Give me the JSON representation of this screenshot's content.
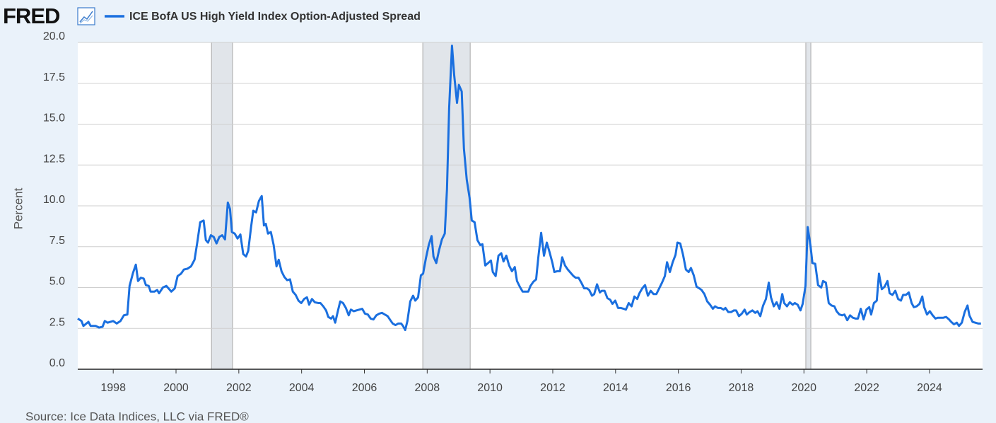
{
  "logo": "FRED",
  "source": "Source: Ice Data Indices, LLC via FRED®",
  "chart_data": {
    "type": "line",
    "y_label": "Percent",
    "grid": true,
    "xlim": [
      1996.87,
      2025.69
    ],
    "xticks": [
      1998,
      2000,
      2002,
      2004,
      2006,
      2008,
      2010,
      2012,
      2014,
      2016,
      2018,
      2020,
      2022,
      2024
    ],
    "ylim": [
      0,
      20
    ],
    "yticks": [
      {
        "value": 0,
        "label": "0.0"
      },
      2.5,
      {
        "value": 5,
        "label": "5.0"
      },
      7.5,
      {
        "value": 10,
        "label": "10.0"
      },
      12.5,
      {
        "value": 15,
        "label": "15.0"
      },
      17.5,
      {
        "value": 20,
        "label": "20.0"
      }
    ],
    "recessions": [
      [
        2001.13,
        2001.8
      ],
      [
        2007.86,
        2009.37
      ],
      [
        2020.06,
        2020.22
      ]
    ],
    "recession_color": "#e1e5ea",
    "x": [
      1996.87,
      1996.99,
      1997.05,
      1997.21,
      1997.28,
      1997.44,
      1997.55,
      1997.66,
      1997.73,
      1997.82,
      1998.0,
      1998.11,
      1998.23,
      1998.34,
      1998.45,
      1998.52,
      1998.63,
      1998.72,
      1998.79,
      1998.88,
      1998.97,
      1999.04,
      1999.13,
      1999.19,
      1999.31,
      1999.4,
      1999.46,
      1999.58,
      1999.69,
      1999.76,
      1999.85,
      1999.96,
      2000.05,
      2000.16,
      2000.25,
      2000.36,
      2000.48,
      2000.59,
      2000.68,
      2000.77,
      2000.88,
      2000.95,
      2001.02,
      2001.11,
      2001.2,
      2001.29,
      2001.38,
      2001.47,
      2001.56,
      2001.65,
      2001.72,
      2001.78,
      2001.87,
      2001.96,
      2002.05,
      2002.14,
      2002.23,
      2002.3,
      2002.39,
      2002.46,
      2002.55,
      2002.64,
      2002.73,
      2002.8,
      2002.86,
      2002.93,
      2003.02,
      2003.11,
      2003.2,
      2003.27,
      2003.36,
      2003.45,
      2003.54,
      2003.63,
      2003.72,
      2003.81,
      2003.9,
      2003.99,
      2004.08,
      2004.17,
      2004.24,
      2004.33,
      2004.42,
      2004.53,
      2004.6,
      2004.69,
      2004.78,
      2004.85,
      2004.94,
      2005.0,
      2005.07,
      2005.16,
      2005.23,
      2005.32,
      2005.41,
      2005.5,
      2005.57,
      2005.66,
      2005.75,
      2005.84,
      2005.93,
      2006.02,
      2006.11,
      2006.2,
      2006.29,
      2006.38,
      2006.47,
      2006.56,
      2006.65,
      2006.74,
      2006.81,
      2006.9,
      2006.99,
      2007.08,
      2007.17,
      2007.23,
      2007.3,
      2007.37,
      2007.46,
      2007.55,
      2007.62,
      2007.71,
      2007.8,
      2007.87,
      2007.96,
      2008.05,
      2008.14,
      2008.2,
      2008.29,
      2008.38,
      2008.47,
      2008.56,
      2008.63,
      2008.7,
      2008.79,
      2008.86,
      2008.95,
      2009.01,
      2009.1,
      2009.17,
      2009.26,
      2009.35,
      2009.42,
      2009.51,
      2009.6,
      2009.69,
      2009.76,
      2009.85,
      2009.94,
      2010.03,
      2010.09,
      2010.18,
      2010.27,
      2010.36,
      2010.43,
      2010.52,
      2010.61,
      2010.7,
      2010.79,
      2010.86,
      2010.95,
      2011.04,
      2011.13,
      2011.22,
      2011.29,
      2011.38,
      2011.47,
      2011.54,
      2011.63,
      2011.72,
      2011.81,
      2011.9,
      2011.99,
      2012.05,
      2012.14,
      2012.23,
      2012.3,
      2012.39,
      2012.48,
      2012.57,
      2012.66,
      2012.73,
      2012.82,
      2012.91,
      2013.0,
      2013.09,
      2013.16,
      2013.25,
      2013.32,
      2013.41,
      2013.5,
      2013.56,
      2013.65,
      2013.74,
      2013.83,
      2013.9,
      2013.99,
      2014.08,
      2014.17,
      2014.26,
      2014.33,
      2014.42,
      2014.51,
      2014.6,
      2014.69,
      2014.76,
      2014.85,
      2014.94,
      2015.03,
      2015.12,
      2015.21,
      2015.3,
      2015.39,
      2015.48,
      2015.57,
      2015.64,
      2015.73,
      2015.82,
      2015.91,
      2015.97,
      2016.06,
      2016.15,
      2016.24,
      2016.33,
      2016.4,
      2016.49,
      2016.58,
      2016.67,
      2016.74,
      2016.83,
      2016.92,
      2017.01,
      2017.1,
      2017.17,
      2017.26,
      2017.35,
      2017.44,
      2017.5,
      2017.59,
      2017.68,
      2017.77,
      2017.84,
      2017.93,
      2018.02,
      2018.11,
      2018.18,
      2018.27,
      2018.36,
      2018.45,
      2018.52,
      2018.61,
      2018.7,
      2018.79,
      2018.88,
      2018.95,
      2019.04,
      2019.13,
      2019.22,
      2019.31,
      2019.37,
      2019.46,
      2019.55,
      2019.64,
      2019.71,
      2019.8,
      2019.89,
      2019.96,
      2020.05,
      2020.12,
      2020.21,
      2020.27,
      2020.36,
      2020.45,
      2020.55,
      2020.61,
      2020.7,
      2020.79,
      2020.88,
      2020.97,
      2021.04,
      2021.13,
      2021.22,
      2021.29,
      2021.38,
      2021.47,
      2021.56,
      2021.65,
      2021.72,
      2021.81,
      2021.9,
      2021.99,
      2022.08,
      2022.14,
      2022.23,
      2022.32,
      2022.39,
      2022.48,
      2022.57,
      2022.66,
      2022.73,
      2022.82,
      2022.91,
      2023.0,
      2023.09,
      2023.16,
      2023.25,
      2023.34,
      2023.43,
      2023.5,
      2023.59,
      2023.68,
      2023.77,
      2023.83,
      2023.92,
      2024.01,
      2024.1,
      2024.19,
      2024.26,
      2024.35,
      2024.44,
      2024.53,
      2024.62,
      2024.69,
      2024.78,
      2024.87,
      2024.94,
      2025.03,
      2025.12,
      2025.21,
      2025.27,
      2025.37,
      2025.46,
      2025.55,
      2025.64
    ],
    "series": [
      {
        "name": "ICE BofA US High Yield Index Option-Adjusted Spread",
        "color": "#1a6fdf",
        "values": [
          3.1,
          2.95,
          2.65,
          2.9,
          2.65,
          2.65,
          2.55,
          2.6,
          2.95,
          2.85,
          2.95,
          2.8,
          2.95,
          3.3,
          3.35,
          5.1,
          5.9,
          6.4,
          5.4,
          5.6,
          5.55,
          5.15,
          5.1,
          4.75,
          4.75,
          4.85,
          4.65,
          5.0,
          5.1,
          4.95,
          4.75,
          4.95,
          5.7,
          5.85,
          6.1,
          6.15,
          6.3,
          6.7,
          7.8,
          9.0,
          9.1,
          7.9,
          7.75,
          8.2,
          8.1,
          7.7,
          8.1,
          8.2,
          7.95,
          10.2,
          9.8,
          8.4,
          8.3,
          8.0,
          8.25,
          7.05,
          6.9,
          7.25,
          8.7,
          9.7,
          9.6,
          10.3,
          10.6,
          8.8,
          8.9,
          8.3,
          8.4,
          7.6,
          6.3,
          6.7,
          6.0,
          5.65,
          5.45,
          5.5,
          4.75,
          4.55,
          4.2,
          4.05,
          4.3,
          4.4,
          3.95,
          4.3,
          4.1,
          4.05,
          4.05,
          3.85,
          3.6,
          3.2,
          3.1,
          3.25,
          2.85,
          3.6,
          4.15,
          4.05,
          3.75,
          3.3,
          3.65,
          3.55,
          3.6,
          3.65,
          3.7,
          3.4,
          3.35,
          3.1,
          3.05,
          3.3,
          3.4,
          3.45,
          3.35,
          3.25,
          3.05,
          2.8,
          2.7,
          2.8,
          2.8,
          2.65,
          2.4,
          2.95,
          4.15,
          4.5,
          4.2,
          4.4,
          5.75,
          5.85,
          6.8,
          7.6,
          8.15,
          6.9,
          6.5,
          7.3,
          7.95,
          8.3,
          11.0,
          16.0,
          19.8,
          18.0,
          16.3,
          17.4,
          17.0,
          13.5,
          11.6,
          10.5,
          9.1,
          9.0,
          7.9,
          7.6,
          7.65,
          6.35,
          6.5,
          6.65,
          5.95,
          5.7,
          6.95,
          7.1,
          6.6,
          6.95,
          6.35,
          6.0,
          6.25,
          5.4,
          5.05,
          4.75,
          4.75,
          4.75,
          5.1,
          5.35,
          5.5,
          6.85,
          8.35,
          6.95,
          7.75,
          7.15,
          6.5,
          5.95,
          6.0,
          6.0,
          6.85,
          6.35,
          6.1,
          5.9,
          5.7,
          5.6,
          5.6,
          5.3,
          4.95,
          4.95,
          4.85,
          4.5,
          4.6,
          5.2,
          4.7,
          4.8,
          4.8,
          4.35,
          4.25,
          4.0,
          4.2,
          3.75,
          3.75,
          3.7,
          3.65,
          4.05,
          3.85,
          4.45,
          4.3,
          4.65,
          4.95,
          5.15,
          4.5,
          4.8,
          4.6,
          4.6,
          4.95,
          5.3,
          5.7,
          6.55,
          5.95,
          6.55,
          7.0,
          7.75,
          7.7,
          7.0,
          6.1,
          5.95,
          6.2,
          5.75,
          5.05,
          4.95,
          4.85,
          4.6,
          4.15,
          3.95,
          3.7,
          3.85,
          3.75,
          3.75,
          3.65,
          3.75,
          3.5,
          3.5,
          3.6,
          3.6,
          3.25,
          3.4,
          3.65,
          3.35,
          3.5,
          3.6,
          3.45,
          3.55,
          3.25,
          3.9,
          4.3,
          5.3,
          4.4,
          3.85,
          4.1,
          3.7,
          4.6,
          4.05,
          3.85,
          4.1,
          3.95,
          4.05,
          3.95,
          3.6,
          4.0,
          5.1,
          8.7,
          7.55,
          6.5,
          6.45,
          5.15,
          5.0,
          5.4,
          5.3,
          4.05,
          3.9,
          3.85,
          3.55,
          3.35,
          3.3,
          3.35,
          3.0,
          3.3,
          3.15,
          3.1,
          3.1,
          3.7,
          3.05,
          3.65,
          3.8,
          3.35,
          4.05,
          4.2,
          5.85,
          4.9,
          5.05,
          5.4,
          4.65,
          4.55,
          4.8,
          4.3,
          4.2,
          4.55,
          4.55,
          4.7,
          4.05,
          3.8,
          3.85,
          4.0,
          4.45,
          3.8,
          3.35,
          3.55,
          3.3,
          3.1,
          3.15,
          3.15,
          3.15,
          3.2,
          3.05,
          2.9,
          2.75,
          2.85,
          2.65,
          2.85,
          3.5,
          3.9,
          3.3,
          2.9,
          2.85,
          2.8,
          2.8
        ]
      }
    ]
  }
}
